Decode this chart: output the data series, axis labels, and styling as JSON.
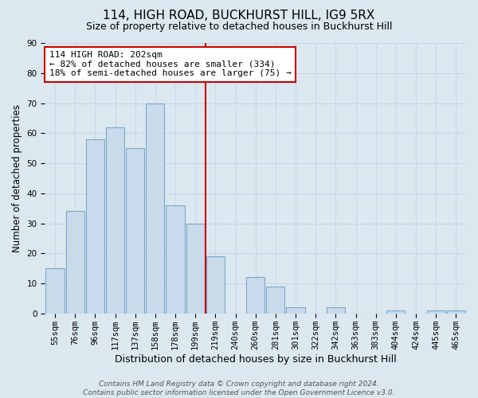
{
  "title": "114, HIGH ROAD, BUCKHURST HILL, IG9 5RX",
  "subtitle": "Size of property relative to detached houses in Buckhurst Hill",
  "xlabel": "Distribution of detached houses by size in Buckhurst Hill",
  "ylabel": "Number of detached properties",
  "bar_labels": [
    "55sqm",
    "76sqm",
    "96sqm",
    "117sqm",
    "137sqm",
    "158sqm",
    "178sqm",
    "199sqm",
    "219sqm",
    "240sqm",
    "260sqm",
    "281sqm",
    "301sqm",
    "322sqm",
    "342sqm",
    "363sqm",
    "383sqm",
    "404sqm",
    "424sqm",
    "445sqm",
    "465sqm"
  ],
  "bar_values": [
    15,
    34,
    58,
    62,
    55,
    70,
    36,
    30,
    19,
    0,
    12,
    9,
    2,
    0,
    2,
    0,
    0,
    1,
    0,
    1,
    1
  ],
  "bar_color": "#c9daea",
  "bar_edgecolor": "#7aa8cc",
  "vline_x_index": 7,
  "vline_color": "#cc0000",
  "ann_line1": "114 HIGH ROAD: 202sqm",
  "ann_line2": "← 82% of detached houses are smaller (334)",
  "ann_line3": "18% of semi-detached houses are larger (75) →",
  "annotation_box_edgecolor": "#cc0000",
  "annotation_box_facecolor": "#ffffff",
  "ylim": [
    0,
    90
  ],
  "yticks": [
    0,
    10,
    20,
    30,
    40,
    50,
    60,
    70,
    80,
    90
  ],
  "grid_color": "#c8d8e8",
  "bg_color": "#dce8f0",
  "footer_line1": "Contains HM Land Registry data © Crown copyright and database right 2024.",
  "footer_line2": "Contains public sector information licensed under the Open Government Licence v3.0.",
  "title_fontsize": 11,
  "subtitle_fontsize": 9,
  "xlabel_fontsize": 9,
  "ylabel_fontsize": 8.5,
  "tick_fontsize": 7.5,
  "footer_fontsize": 6.5
}
